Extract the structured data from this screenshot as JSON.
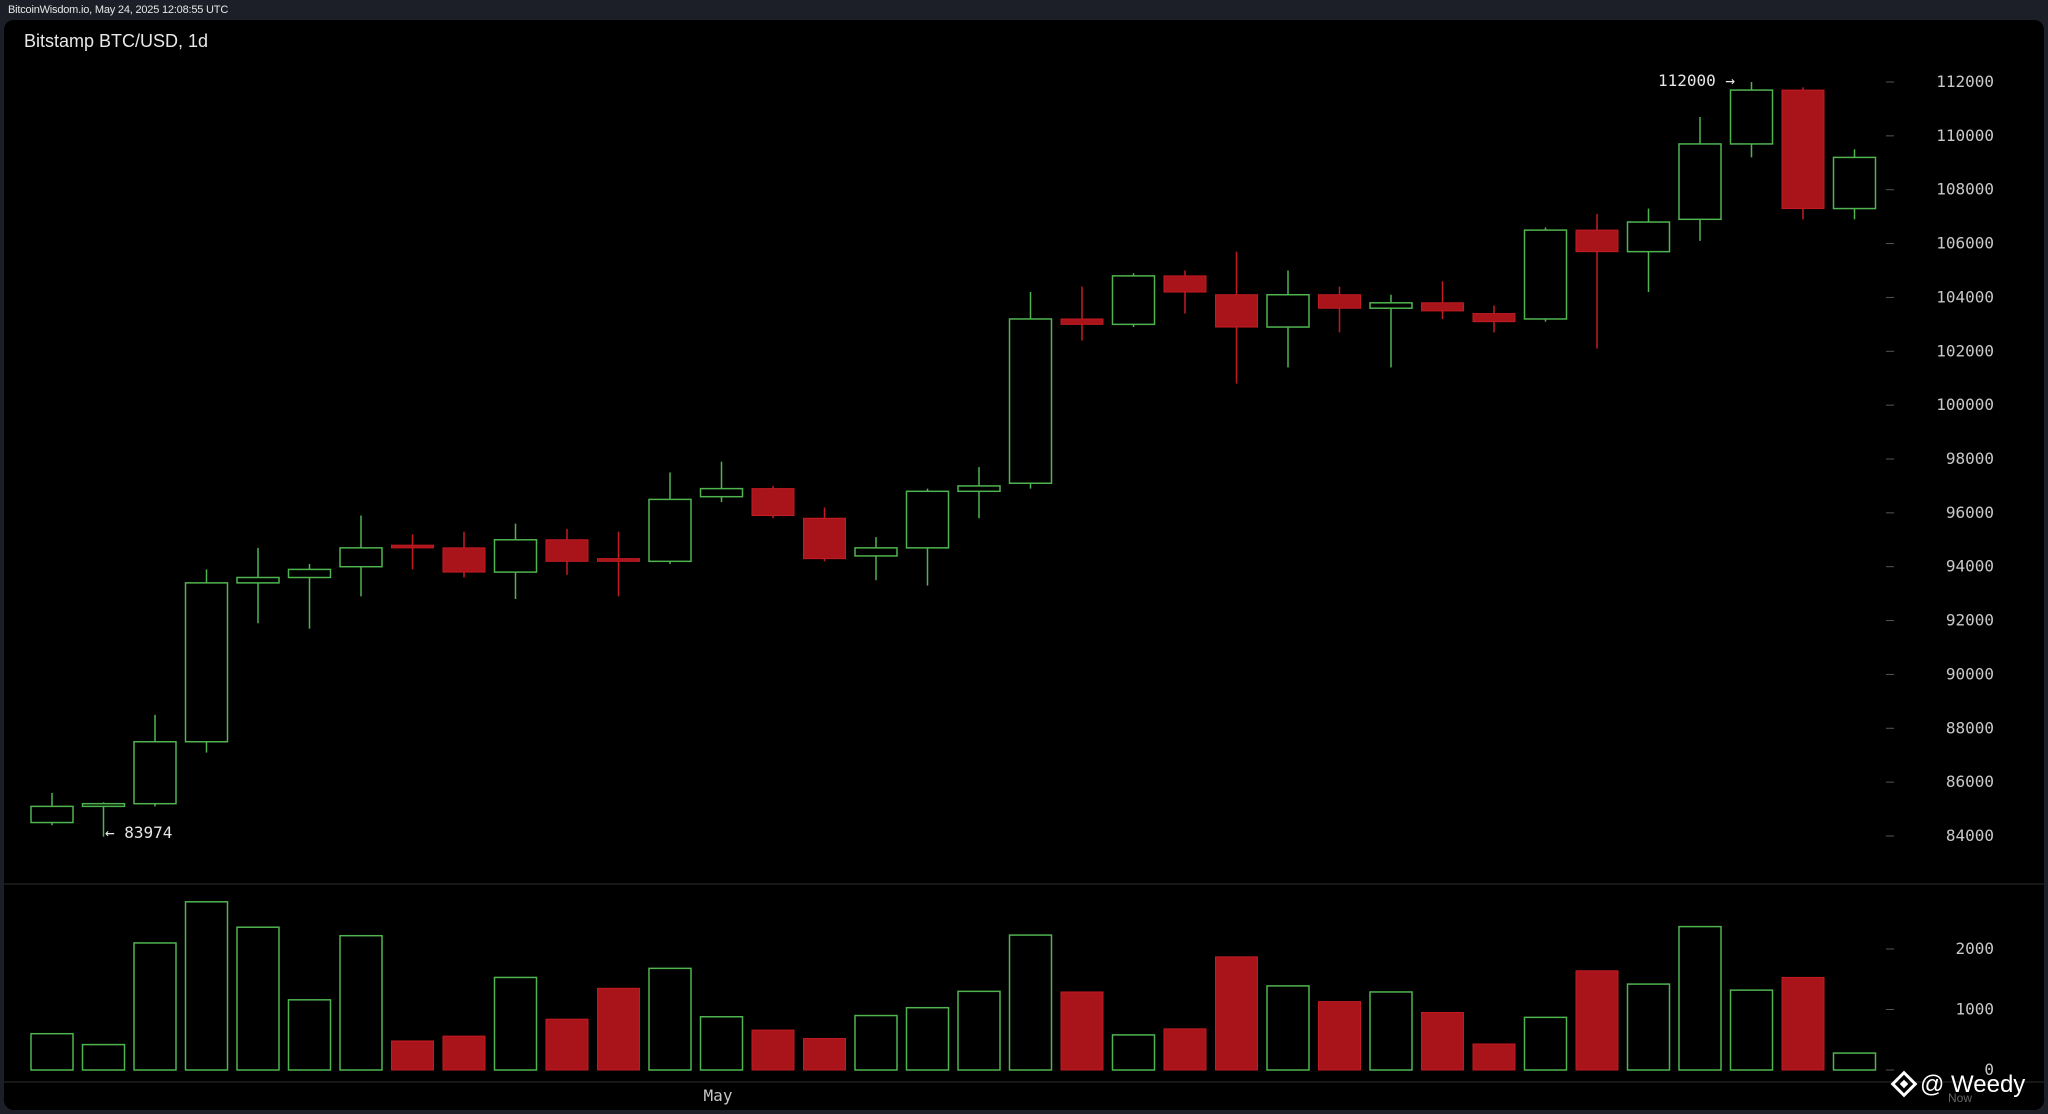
{
  "header": {
    "timestamp_text": "BitcoinWisdom.io, May 24, 2025 12:08:55 UTC"
  },
  "chart": {
    "title": "Bitstamp BTC/USD, 1d",
    "high_label": "112000 →",
    "low_label": "← 83974",
    "x_month_label": "May",
    "x_right_label": "Now",
    "watermark_text": "@ Weedy",
    "watermark_icon": "binance-diamond-icon"
  },
  "colors": {
    "background": "#000000",
    "up": "#4fb44f",
    "down": "#a8141a",
    "down_wick": "#c21c22",
    "axis_text": "#c8c8c8",
    "title_text": "#e8e8e8",
    "separator": "#2a2a2a"
  },
  "chart_data": {
    "type": "candlestick",
    "title": "Bitstamp BTC/USD, 1d",
    "price_axis": {
      "ticks": [
        84000,
        86000,
        88000,
        90000,
        92000,
        94000,
        96000,
        98000,
        100000,
        102000,
        104000,
        106000,
        108000,
        110000,
        112000
      ],
      "range": [
        83000,
        113000
      ]
    },
    "volume_axis": {
      "ticks": [
        0,
        1000,
        2000
      ],
      "range": [
        0,
        2800
      ]
    },
    "x_labels": [
      {
        "index": 13,
        "label": "May"
      }
    ],
    "annotations": [
      {
        "text": "112000 →",
        "value": 112000,
        "index": 33
      },
      {
        "text": "← 83974",
        "value": 83974,
        "index": 1
      }
    ],
    "candles": [
      {
        "o": 84500,
        "h": 85600,
        "l": 84400,
        "c": 85100,
        "v": 600
      },
      {
        "o": 85100,
        "h": 85250,
        "l": 83974,
        "c": 85200,
        "v": 420
      },
      {
        "o": 85200,
        "h": 88500,
        "l": 85100,
        "c": 87500,
        "v": 2100
      },
      {
        "o": 87500,
        "h": 93900,
        "l": 87100,
        "c": 93400,
        "v": 2780
      },
      {
        "o": 93400,
        "h": 94700,
        "l": 91900,
        "c": 93600,
        "v": 2360
      },
      {
        "o": 93600,
        "h": 94100,
        "l": 91700,
        "c": 93900,
        "v": 1160
      },
      {
        "o": 94000,
        "h": 95900,
        "l": 92900,
        "c": 94700,
        "v": 2220
      },
      {
        "o": 94800,
        "h": 95200,
        "l": 93900,
        "c": 94700,
        "v": 480
      },
      {
        "o": 94700,
        "h": 95300,
        "l": 93600,
        "c": 93800,
        "v": 560
      },
      {
        "o": 93800,
        "h": 95600,
        "l": 92800,
        "c": 95000,
        "v": 1530
      },
      {
        "o": 95000,
        "h": 95400,
        "l": 93700,
        "c": 94200,
        "v": 840
      },
      {
        "o": 94300,
        "h": 95300,
        "l": 92900,
        "c": 94200,
        "v": 1350
      },
      {
        "o": 94200,
        "h": 97500,
        "l": 94100,
        "c": 96500,
        "v": 1680
      },
      {
        "o": 96600,
        "h": 97900,
        "l": 96400,
        "c": 96900,
        "v": 880
      },
      {
        "o": 96900,
        "h": 97000,
        "l": 95800,
        "c": 95900,
        "v": 660
      },
      {
        "o": 95800,
        "h": 96200,
        "l": 94200,
        "c": 94300,
        "v": 520
      },
      {
        "o": 94400,
        "h": 95100,
        "l": 93500,
        "c": 94700,
        "v": 900
      },
      {
        "o": 94700,
        "h": 96900,
        "l": 93300,
        "c": 96800,
        "v": 1030
      },
      {
        "o": 96800,
        "h": 97700,
        "l": 95800,
        "c": 97000,
        "v": 1300
      },
      {
        "o": 97100,
        "h": 104200,
        "l": 96900,
        "c": 103200,
        "v": 2230
      },
      {
        "o": 103200,
        "h": 104400,
        "l": 102400,
        "c": 103000,
        "v": 1290
      },
      {
        "o": 103000,
        "h": 104900,
        "l": 102900,
        "c": 104800,
        "v": 580
      },
      {
        "o": 104800,
        "h": 105000,
        "l": 103400,
        "c": 104200,
        "v": 680
      },
      {
        "o": 104100,
        "h": 105700,
        "l": 100800,
        "c": 102900,
        "v": 1870
      },
      {
        "o": 102900,
        "h": 105000,
        "l": 101400,
        "c": 104100,
        "v": 1390
      },
      {
        "o": 104100,
        "h": 104400,
        "l": 102700,
        "c": 103600,
        "v": 1130
      },
      {
        "o": 103600,
        "h": 104100,
        "l": 101400,
        "c": 103800,
        "v": 1290
      },
      {
        "o": 103800,
        "h": 104600,
        "l": 103200,
        "c": 103500,
        "v": 950
      },
      {
        "o": 103400,
        "h": 103700,
        "l": 102700,
        "c": 103100,
        "v": 430
      },
      {
        "o": 103200,
        "h": 106600,
        "l": 103100,
        "c": 106500,
        "v": 870
      },
      {
        "o": 106500,
        "h": 107100,
        "l": 102100,
        "c": 105700,
        "v": 1640
      },
      {
        "o": 105700,
        "h": 107300,
        "l": 104200,
        "c": 106800,
        "v": 1420
      },
      {
        "o": 106900,
        "h": 110700,
        "l": 106100,
        "c": 109700,
        "v": 2370
      },
      {
        "o": 109700,
        "h": 112000,
        "l": 109200,
        "c": 111700,
        "v": 1320
      },
      {
        "o": 111700,
        "h": 111800,
        "l": 106900,
        "c": 107300,
        "v": 1530
      },
      {
        "o": 107300,
        "h": 109500,
        "l": 106900,
        "c": 109200,
        "v": 280
      }
    ]
  }
}
